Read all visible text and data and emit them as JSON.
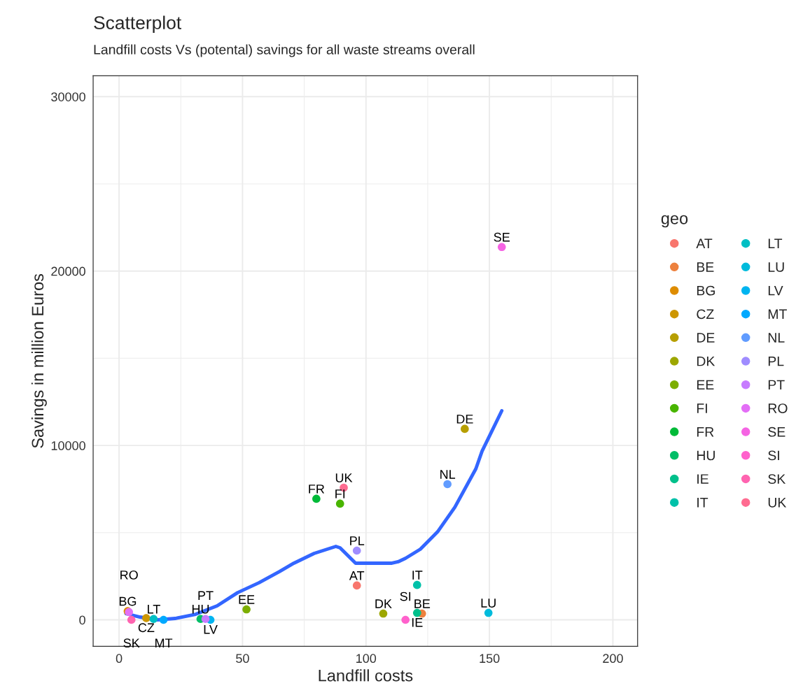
{
  "chart_data": {
    "type": "scatter",
    "title": "Scatterplot",
    "subtitle": "Landfill costs Vs (potental) savings for all waste streams overall",
    "xlabel": "Landfill costs",
    "ylabel": "Savings in million Euros",
    "legend_title": "geo",
    "xlim": [
      -10.5,
      210
    ],
    "ylim": [
      -1520,
      31200
    ],
    "xticks": [
      0,
      50,
      100,
      150,
      200
    ],
    "yticks": [
      0,
      10000,
      20000,
      30000
    ],
    "grid": true,
    "legend": "right",
    "marker": "circle",
    "series": [
      {
        "name": "AT",
        "color": "#F8766D",
        "x": [
          96.3
        ],
        "values": [
          1970
        ]
      },
      {
        "name": "BE",
        "color": "#ED813E",
        "x": [
          122.7
        ],
        "values": [
          360
        ]
      },
      {
        "name": "BG",
        "color": "#DE8C00",
        "x": [
          3.5
        ],
        "values": [
          500
        ]
      },
      {
        "name": "CZ",
        "color": "#CD9600",
        "x": [
          11
        ],
        "values": [
          100
        ]
      },
      {
        "name": "DE",
        "color": "#B79F00",
        "x": [
          140
        ],
        "values": [
          10950
        ]
      },
      {
        "name": "DK",
        "color": "#9DA700",
        "x": [
          107
        ],
        "values": [
          360
        ]
      },
      {
        "name": "EE",
        "color": "#7CAE00",
        "x": [
          51.6
        ],
        "values": [
          600
        ]
      },
      {
        "name": "FI",
        "color": "#49B500",
        "x": [
          89.5
        ],
        "values": [
          6660
        ]
      },
      {
        "name": "FR",
        "color": "#00BA38",
        "x": [
          79.9
        ],
        "values": [
          6940
        ]
      },
      {
        "name": "HU",
        "color": "#00BE67",
        "x": [
          33
        ],
        "values": [
          50
        ]
      },
      {
        "name": "IE",
        "color": "#00C08B",
        "x": [
          120.7
        ],
        "values": [
          400
        ]
      },
      {
        "name": "IT",
        "color": "#00C1A9",
        "x": [
          120.7
        ],
        "values": [
          2000
        ]
      },
      {
        "name": "LT",
        "color": "#00BFC4",
        "x": [
          14
        ],
        "values": [
          50
        ]
      },
      {
        "name": "LU",
        "color": "#00BBDC",
        "x": [
          149.6
        ],
        "values": [
          400
        ]
      },
      {
        "name": "LV",
        "color": "#00B4F0",
        "x": [
          37
        ],
        "values": [
          0
        ]
      },
      {
        "name": "MT",
        "color": "#00A9FF",
        "x": [
          18
        ],
        "values": [
          0
        ]
      },
      {
        "name": "NL",
        "color": "#619CFF",
        "x": [
          133
        ],
        "values": [
          7780
        ]
      },
      {
        "name": "PL",
        "color": "#9F8CFF",
        "x": [
          96.3
        ],
        "values": [
          3970
        ]
      },
      {
        "name": "PT",
        "color": "#C77CFF",
        "x": [
          35
        ],
        "values": [
          50
        ]
      },
      {
        "name": "RO",
        "color": "#E36EF6",
        "x": [
          4
        ],
        "values": [
          450
        ]
      },
      {
        "name": "SE",
        "color": "#F564E3",
        "x": [
          155
        ],
        "values": [
          21380
        ]
      },
      {
        "name": "SI",
        "color": "#FF61CC",
        "x": [
          116
        ],
        "values": [
          0
        ]
      },
      {
        "name": "SK",
        "color": "#FF64B0",
        "x": [
          5
        ],
        "values": [
          0
        ]
      },
      {
        "name": "UK",
        "color": "#FF6C91",
        "x": [
          91
        ],
        "values": [
          7580
        ]
      },
      {
        "type": "line",
        "marker": "none",
        "color": "#3366FF",
        "x": [
          2.8,
          8.5,
          15.6,
          22.7,
          31,
          39.7,
          48,
          56.7,
          65,
          70.8,
          79,
          87.8,
          89.5,
          95.8,
          103,
          110.5,
          113,
          116,
          122,
          129,
          136,
          144.5,
          147,
          155
        ],
        "values": [
          360,
          160,
          0,
          80,
          320,
          800,
          1560,
          2130,
          2770,
          3250,
          3810,
          4210,
          4130,
          3250,
          3250,
          3250,
          3330,
          3530,
          4050,
          5050,
          6460,
          8660,
          9670,
          11990
        ]
      }
    ],
    "annotations": [
      {
        "text": "AT",
        "x": 96.3,
        "y": 1970
      },
      {
        "text": "BE",
        "x": 122.7,
        "y": 360
      },
      {
        "text": "BG",
        "x": 3.5,
        "y": 500
      },
      {
        "text": "CZ",
        "x": 11,
        "y": 100
      },
      {
        "text": "DE",
        "x": 140,
        "y": 10950
      },
      {
        "text": "DK",
        "x": 107,
        "y": 360
      },
      {
        "text": "EE",
        "x": 51.6,
        "y": 600
      },
      {
        "text": "FI",
        "x": 89.5,
        "y": 6660
      },
      {
        "text": "FR",
        "x": 79.9,
        "y": 6940
      },
      {
        "text": "HU",
        "x": 33,
        "y": 50
      },
      {
        "text": "IE",
        "x": 120.7,
        "y": 400
      },
      {
        "text": "IT",
        "x": 120.7,
        "y": 2000
      },
      {
        "text": "LT",
        "x": 14,
        "y": 50
      },
      {
        "text": "LU",
        "x": 149.6,
        "y": 400
      },
      {
        "text": "LV",
        "x": 37,
        "y": 0
      },
      {
        "text": "MT",
        "x": 18,
        "y": 0
      },
      {
        "text": "NL",
        "x": 133,
        "y": 7780
      },
      {
        "text": "PL",
        "x": 96.3,
        "y": 3970
      },
      {
        "text": "PT",
        "x": 35,
        "y": 50
      },
      {
        "text": "RO",
        "x": 4,
        "y": 450
      },
      {
        "text": "SE",
        "x": 155,
        "y": 21380
      },
      {
        "text": "SI",
        "x": 116,
        "y": 0
      },
      {
        "text": "SK",
        "x": 5,
        "y": 0
      },
      {
        "text": "UK",
        "x": 91,
        "y": 7580
      }
    ]
  }
}
